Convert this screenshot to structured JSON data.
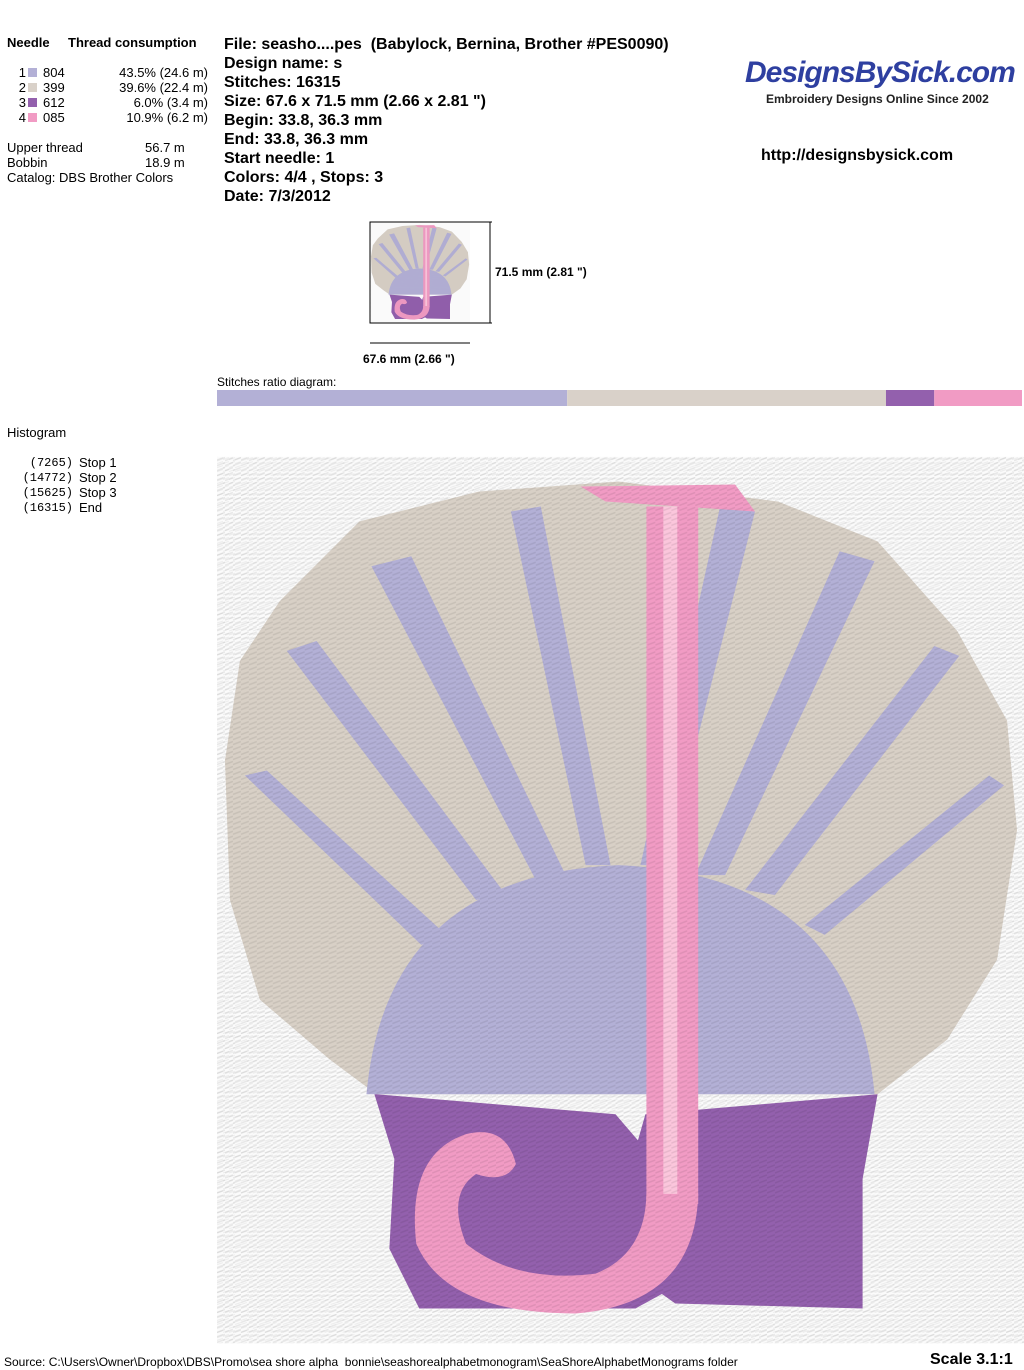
{
  "threads": {
    "header_needle": "Needle",
    "header_consumption": "Thread consumption",
    "rows": [
      {
        "needle": "1",
        "code": "804",
        "consumption": "43.5% (24.6 m)",
        "color": "#b3b0d6"
      },
      {
        "needle": "2",
        "code": "399",
        "consumption": "39.6% (22.4 m)",
        "color": "#d9d1c9"
      },
      {
        "needle": "3",
        "code": "612",
        "consumption": "6.0% (3.4 m)",
        "color": "#9360ad"
      },
      {
        "needle": "4",
        "code": "085",
        "consumption": "10.9% (6.2 m)",
        "color": "#f19bc4"
      }
    ],
    "upper_thread_label": "Upper thread",
    "upper_thread": "56.7 m",
    "bobbin_label": "Bobbin",
    "bobbin": "18.9 m",
    "catalog": "Catalog: DBS Brother Colors"
  },
  "info": {
    "lines": [
      "File: seasho....pes  (Babylock, Bernina, Brother #PES0090)",
      "Design name: s",
      "Stitches: 16315",
      "Size: 67.6 x 71.5 mm (2.66 x 2.81 \")",
      "Begin: 33.8, 36.3 mm",
      "End: 33.8, 36.3 mm",
      "Start needle: 1",
      "Colors: 4/4 , Stops: 3",
      "Date: 7/3/2012"
    ]
  },
  "brand": {
    "logo": "DesignsBySick.com",
    "tagline": "Embroidery Designs Online Since 2002",
    "url": "http://designsbysick.com"
  },
  "thumbnail": {
    "height_label": "71.5 mm (2.81 \")",
    "width_label": "67.6 mm (2.66 \")"
  },
  "ratio": {
    "label": "Stitches ratio diagram:"
  },
  "histogram": {
    "title": "Histogram",
    "stops": [
      {
        "count": "(7265)",
        "label": "Stop 1"
      },
      {
        "count": "(14772)",
        "label": "Stop 2"
      },
      {
        "count": "(15625)",
        "label": "Stop 3"
      },
      {
        "count": "(16315)",
        "label": "End"
      }
    ]
  },
  "footer": {
    "source": "Source: C:\\Users\\Owner\\Dropbox\\DBS\\Promo\\sea shore alpha  bonnie\\seashorealphabetmonogram\\SeaShoreAlphabetMonograms folder",
    "scale": "Scale 3.1:1"
  }
}
